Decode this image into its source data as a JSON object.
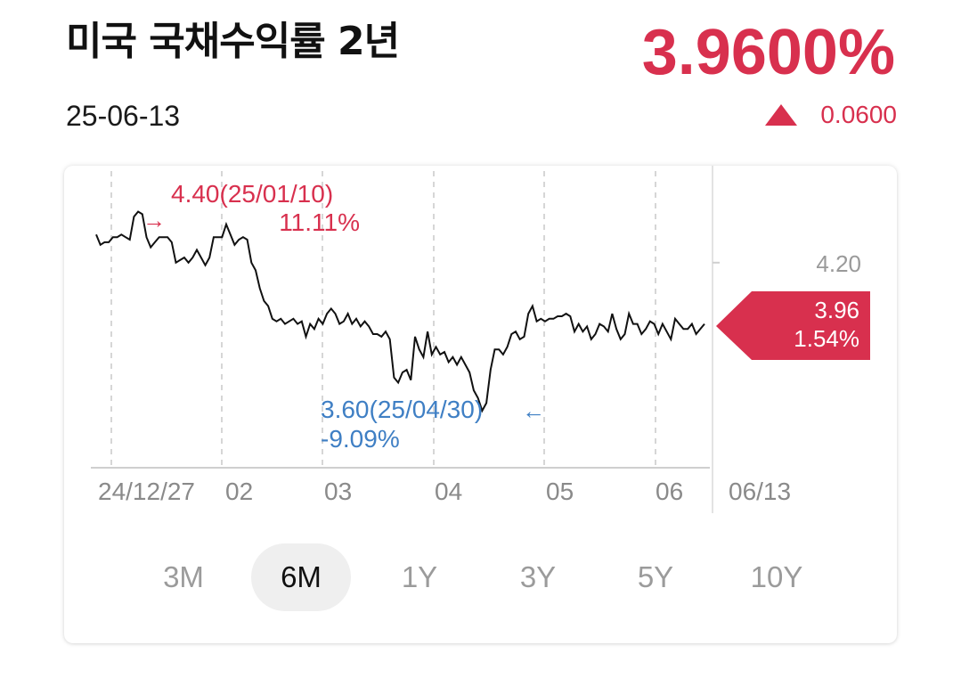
{
  "header": {
    "title": "미국 국채수익률 2년",
    "date": "25-06-13",
    "price": "3.9600%",
    "change": "0.0600",
    "change_direction": "up",
    "accent_color": "#d8304e"
  },
  "periods": [
    {
      "label": "3M",
      "active": false
    },
    {
      "label": "6M",
      "active": true
    },
    {
      "label": "1Y",
      "active": false
    },
    {
      "label": "3Y",
      "active": false
    },
    {
      "label": "5Y",
      "active": false
    },
    {
      "label": "10Y",
      "active": false
    }
  ],
  "chart_data": {
    "type": "line",
    "series_color": "#111111",
    "x_tick_labels": [
      "24/12/27",
      "02",
      "03",
      "04",
      "05",
      "06",
      "06/13"
    ],
    "y_tick_labels": [
      "4.20"
    ],
    "ylim": [
      3.4,
      4.51
    ],
    "y_ticks": [
      4.2
    ],
    "x": [
      0,
      1,
      2,
      3,
      4,
      5,
      6,
      7,
      8,
      9,
      10,
      11,
      12,
      13,
      14,
      15,
      16,
      17,
      18,
      19,
      20,
      21,
      22,
      23,
      24,
      25,
      26,
      27,
      28,
      29,
      30,
      31,
      32,
      33,
      34,
      35,
      36,
      37,
      38,
      39,
      40,
      41,
      42,
      43,
      44,
      45,
      46,
      47,
      48,
      49,
      50,
      51,
      52,
      53,
      54,
      55,
      56,
      57,
      58,
      59,
      60,
      61,
      62,
      63,
      64,
      65,
      66,
      67,
      68,
      69,
      70,
      71,
      72,
      73,
      74,
      75,
      76,
      77,
      78,
      79,
      80,
      81,
      82,
      83,
      84,
      85,
      86,
      87,
      88,
      89,
      90,
      91,
      92,
      93,
      94,
      95,
      96,
      97,
      98,
      99,
      100,
      101,
      102,
      103,
      104,
      105,
      106,
      107,
      108,
      109,
      110,
      111,
      112,
      113,
      114,
      115,
      116,
      117,
      118,
      119,
      120,
      121,
      122,
      123,
      124,
      125,
      126,
      127,
      128,
      129,
      130,
      131,
      132,
      133,
      134,
      135,
      136,
      137,
      138,
      139,
      140,
      141,
      142,
      143,
      144,
      145
    ],
    "values": [
      4.31,
      4.27,
      4.28,
      4.28,
      4.3,
      4.3,
      4.31,
      4.3,
      4.29,
      4.38,
      4.4,
      4.39,
      4.3,
      4.26,
      4.28,
      4.3,
      4.3,
      4.3,
      4.28,
      4.2,
      4.21,
      4.22,
      4.2,
      4.22,
      4.25,
      4.22,
      4.19,
      4.22,
      4.3,
      4.3,
      4.3,
      4.35,
      4.31,
      4.27,
      4.29,
      4.3,
      4.29,
      4.2,
      4.17,
      4.1,
      4.05,
      4.03,
      3.98,
      3.97,
      3.98,
      3.96,
      3.97,
      3.98,
      3.96,
      3.97,
      3.91,
      3.96,
      3.94,
      3.98,
      3.96,
      4.0,
      4.02,
      4.0,
      3.96,
      3.97,
      4.0,
      3.96,
      3.98,
      3.95,
      3.97,
      3.95,
      3.92,
      3.92,
      3.91,
      3.93,
      3.9,
      3.75,
      3.73,
      3.77,
      3.78,
      3.74,
      3.91,
      3.86,
      3.83,
      3.93,
      3.84,
      3.87,
      3.84,
      3.85,
      3.81,
      3.83,
      3.8,
      3.83,
      3.8,
      3.77,
      3.7,
      3.67,
      3.62,
      3.65,
      3.78,
      3.86,
      3.86,
      3.84,
      3.87,
      3.92,
      3.93,
      3.9,
      3.91,
      4.0,
      4.03,
      3.97,
      3.98,
      3.97,
      3.98,
      3.98,
      3.99,
      3.99,
      4.0,
      3.99,
      3.93,
      3.96,
      3.93,
      3.95,
      3.9,
      3.92,
      3.96,
      3.95,
      3.93,
      4.0,
      3.94,
      3.9,
      3.92,
      4.0,
      3.96,
      3.96,
      3.92,
      3.94,
      3.97,
      3.96,
      3.92,
      3.96,
      3.93,
      3.9,
      3.98,
      3.96,
      3.94,
      3.94,
      3.96,
      3.92,
      3.94,
      3.96
    ],
    "last_value_label": "3.96",
    "last_value_pct": "1.54%",
    "high_annotation": {
      "value": 4.4,
      "label": "4.40(25/01/10)",
      "pct": "11.11%",
      "arrow": "→"
    },
    "low_annotation": {
      "value": 3.6,
      "label": "3.60(25/04/30)",
      "pct": "-9.09%",
      "arrow": "←"
    },
    "high_color": "#d8304e",
    "low_color": "#3f7fc4"
  }
}
